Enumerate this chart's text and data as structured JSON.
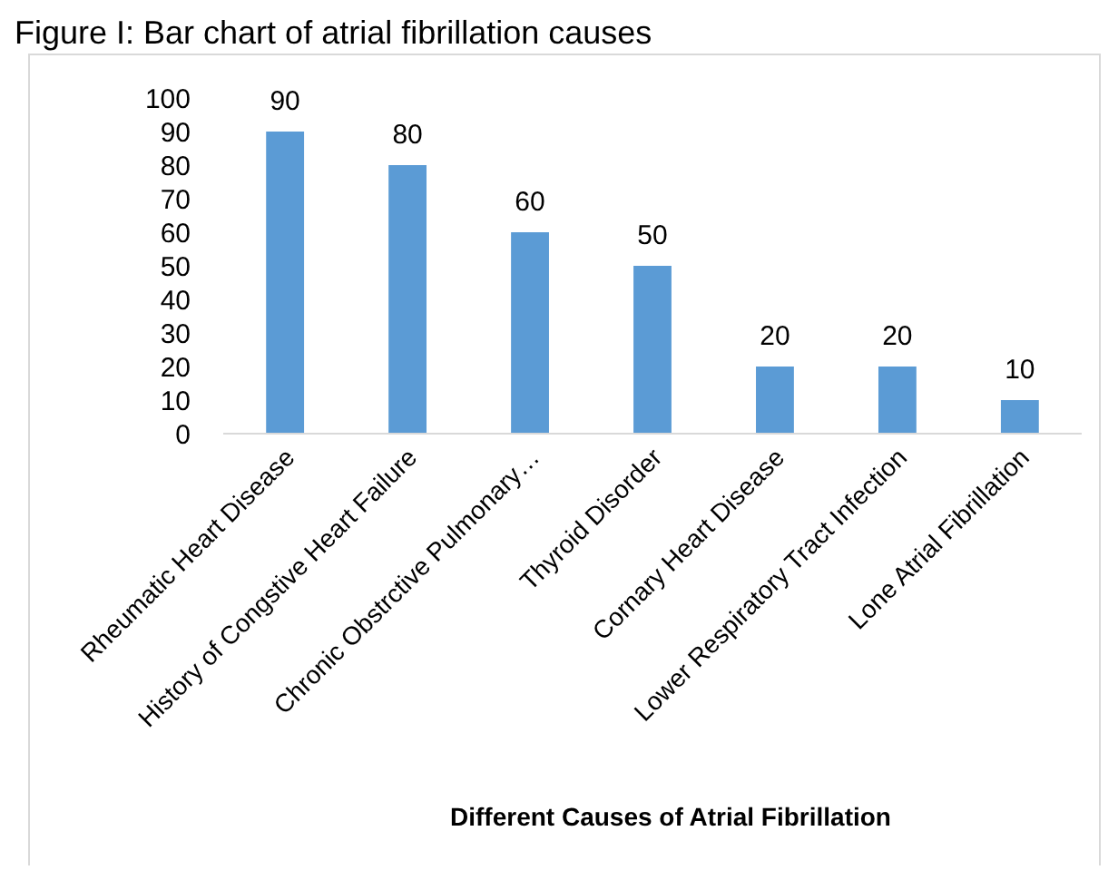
{
  "chart_data": {
    "type": "bar",
    "title": "Figure I: Bar chart of atrial fibrillation causes",
    "xlabel": "Different Causes of Atrial Fibrillation",
    "categories": [
      "Rheumatic Heart Disease",
      "History of Congstive Heart Failure",
      "Chronic Obstrctive Pulmonary…",
      "Thyroid Disorder",
      "Cornary Heart Disease",
      "Lower Respiratory Tract Infection",
      "Lone Atrial Fibrillation"
    ],
    "values": [
      90,
      80,
      60,
      50,
      20,
      20,
      10
    ],
    "color": "#5b9bd5",
    "data_labels": true,
    "ylim": [
      0,
      100
    ],
    "yticks": [
      0,
      10,
      20,
      30,
      40,
      50,
      60,
      70,
      80,
      90,
      100
    ],
    "grid": false
  }
}
